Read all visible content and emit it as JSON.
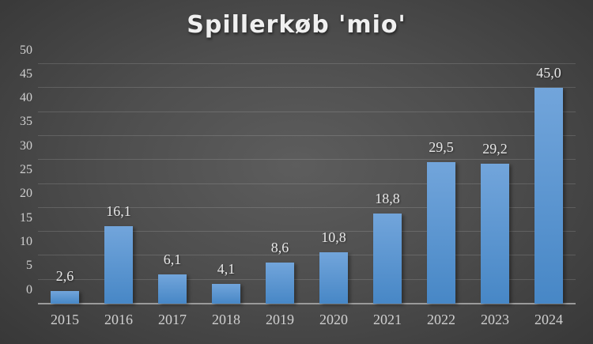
{
  "chart_data": {
    "type": "bar",
    "title": "Spillerkøb 'mio'",
    "categories": [
      "2015",
      "2016",
      "2017",
      "2018",
      "2019",
      "2020",
      "2021",
      "2022",
      "2023",
      "2024"
    ],
    "values": [
      2.6,
      16.1,
      6.1,
      4.1,
      8.6,
      10.8,
      18.8,
      29.5,
      29.2,
      45.0
    ],
    "value_labels": [
      "2,6",
      "16,1",
      "6,1",
      "4,1",
      "8,6",
      "10,8",
      "18,8",
      "29,5",
      "29,2",
      "45,0"
    ],
    "xlabel": "",
    "ylabel": "",
    "ylim": [
      0,
      50
    ],
    "ytick_interval": 5,
    "ytick_labels": [
      "0",
      "5",
      "10",
      "15",
      "20",
      "25",
      "30",
      "35",
      "40",
      "45",
      "50"
    ],
    "grid": true,
    "legend_position": "none",
    "colors": {
      "bar_top": "#72a5db",
      "bar_bottom": "#4787c6",
      "background_center": "#595959",
      "background_edge": "#262626",
      "gridline": "rgba(255,255,255,0.14)",
      "axis_line": "#9a9a9a",
      "tick_label": "#d0d0d0",
      "data_label": "#e8e8e8",
      "title": "#f0f0f0"
    }
  }
}
